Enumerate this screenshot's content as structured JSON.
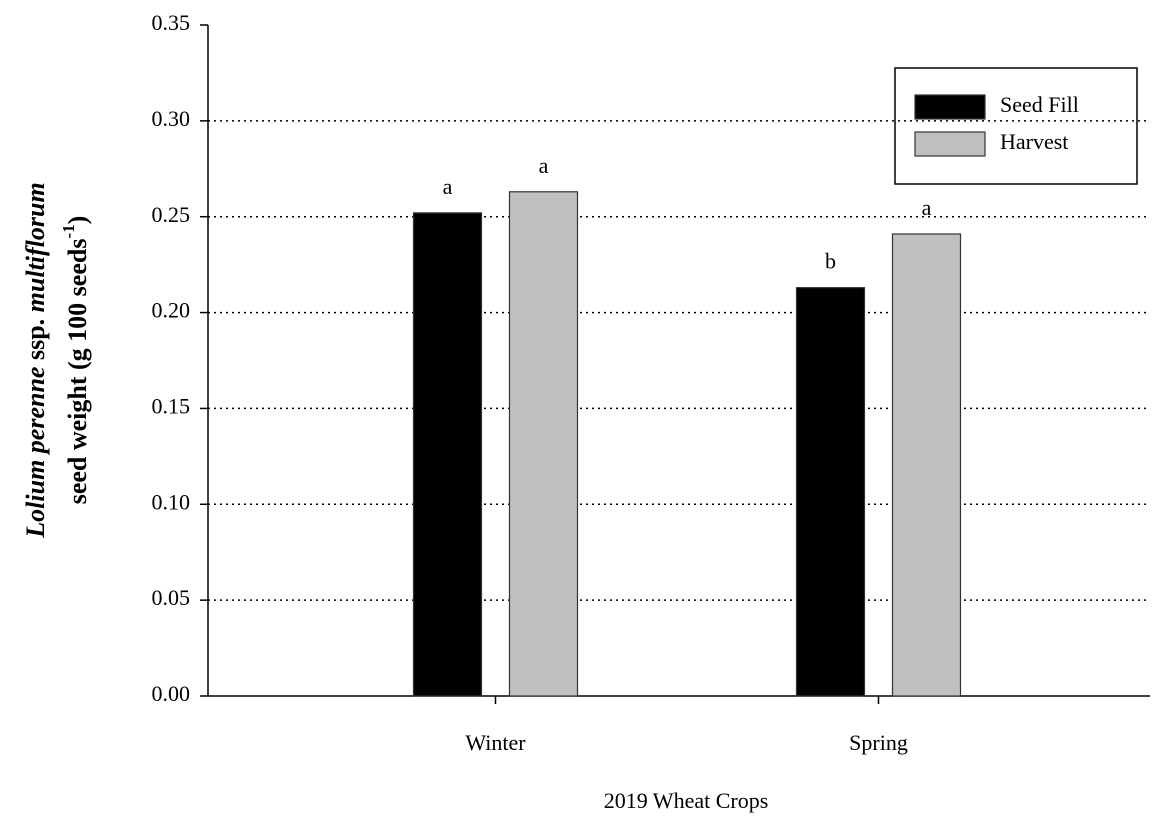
{
  "chart_data": {
    "type": "bar",
    "x_label": "2019 Wheat Crops",
    "y_label": [
      [
        {
          "text": "Lolium perenne",
          "italic": true
        },
        {
          "text": " ssp. "
        },
        {
          "text": "multiflorum",
          "italic": true
        }
      ],
      [
        {
          "text": "seed weight (g 100 seeds"
        },
        {
          "text": "-1",
          "superscript": true
        },
        {
          "text": ")"
        }
      ]
    ],
    "categories": [
      "Winter",
      "Spring"
    ],
    "series": [
      {
        "name": "Seed Fill",
        "color": "#000000",
        "values": [
          0.252,
          0.213
        ],
        "significance_letters": [
          "a",
          "b"
        ]
      },
      {
        "name": "Harvest",
        "color": "#c0c0c0",
        "values": [
          0.263,
          0.241
        ],
        "significance_letters": [
          "a",
          "a"
        ]
      }
    ],
    "ylim": [
      0,
      0.35
    ],
    "yticks": [
      {
        "value": 0,
        "label": "0.00"
      },
      {
        "value": 0.05,
        "label": "0.05"
      },
      {
        "value": 0.1,
        "label": "0.10"
      },
      {
        "value": 0.15,
        "label": "0.15"
      },
      {
        "value": 0.2,
        "label": "0.20"
      },
      {
        "value": 0.25,
        "label": "0.25"
      },
      {
        "value": 0.3,
        "label": "0.30"
      },
      {
        "value": 0.35,
        "label": "0.35"
      }
    ],
    "grid": true,
    "legend": "upper right"
  }
}
